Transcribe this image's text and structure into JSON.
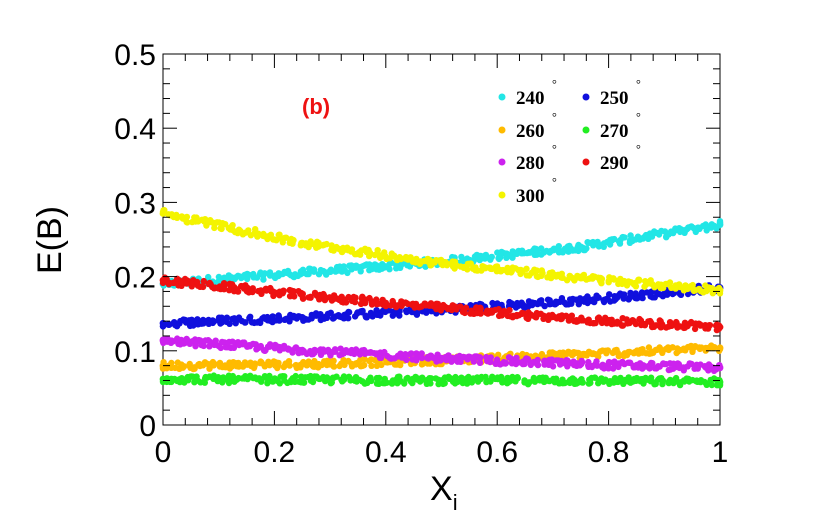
{
  "chart_data": {
    "type": "scatter",
    "panel_label": "(b)",
    "panel_label_color": "#ee1111",
    "xlabel": "X",
    "xlabel_subscript": "i",
    "ylabel": "E(B)",
    "xlim": [
      0,
      1
    ],
    "ylim": [
      0,
      0.5
    ],
    "xticks": [
      0,
      0.2,
      0.4,
      0.6,
      0.8,
      1
    ],
    "xtick_labels": [
      "0",
      "0.2",
      "0.4",
      "0.6",
      "0.8",
      "1"
    ],
    "yticks": [
      0,
      0.1,
      0.2,
      0.3,
      0.4,
      0.5
    ],
    "ytick_labels": [
      "0",
      "0.1",
      "0.2",
      "0.3",
      "0.4",
      "0.5"
    ],
    "degree_symbol": "°",
    "series": [
      {
        "name": "240",
        "color": "#22e6e6",
        "x": [
          0,
          0.25,
          0.5,
          0.75,
          1
        ],
        "y": [
          0.19,
          0.205,
          0.22,
          0.24,
          0.27
        ]
      },
      {
        "name": "250",
        "color": "#1010dd",
        "x": [
          0,
          0.25,
          0.5,
          0.75,
          1
        ],
        "y": [
          0.137,
          0.145,
          0.155,
          0.168,
          0.185
        ]
      },
      {
        "name": "260",
        "color": "#ffbb00",
        "x": [
          0,
          0.25,
          0.5,
          0.75,
          1
        ],
        "y": [
          0.08,
          0.082,
          0.087,
          0.095,
          0.104
        ]
      },
      {
        "name": "270",
        "color": "#22ee22",
        "x": [
          0,
          0.25,
          0.5,
          0.75,
          1
        ],
        "y": [
          0.062,
          0.061,
          0.06,
          0.06,
          0.058
        ]
      },
      {
        "name": "280",
        "color": "#cc22ee",
        "x": [
          0,
          0.25,
          0.5,
          0.75,
          1
        ],
        "y": [
          0.114,
          0.101,
          0.09,
          0.082,
          0.077
        ]
      },
      {
        "name": "290",
        "color": "#ee1111",
        "x": [
          0,
          0.25,
          0.5,
          0.75,
          1
        ],
        "y": [
          0.195,
          0.175,
          0.158,
          0.142,
          0.132
        ]
      },
      {
        "name": "300",
        "color": "#f4f400",
        "x": [
          0,
          0.25,
          0.5,
          0.75,
          1
        ],
        "y": [
          0.285,
          0.245,
          0.218,
          0.198,
          0.182
        ]
      }
    ]
  }
}
